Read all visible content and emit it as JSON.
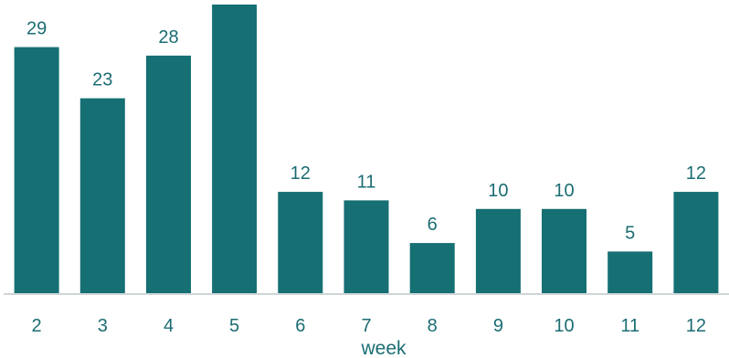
{
  "chart_data": {
    "type": "bar",
    "categories": [
      "2",
      "3",
      "4",
      "5",
      "6",
      "7",
      "8",
      "9",
      "10",
      "11",
      "12"
    ],
    "values": [
      29,
      23,
      28,
      34,
      12,
      11,
      6,
      10,
      10,
      5,
      12
    ],
    "data_labels": [
      "29",
      "23",
      "28",
      "",
      "12",
      "11",
      "6",
      "10",
      "10",
      "5",
      "12"
    ],
    "title": "",
    "xlabel": "week",
    "ylabel": "",
    "ylim": [
      0,
      34
    ],
    "grid": false,
    "bar_color": "#156f73",
    "axis_color": "#cfd6d8",
    "text_color": "#1b6d73"
  }
}
